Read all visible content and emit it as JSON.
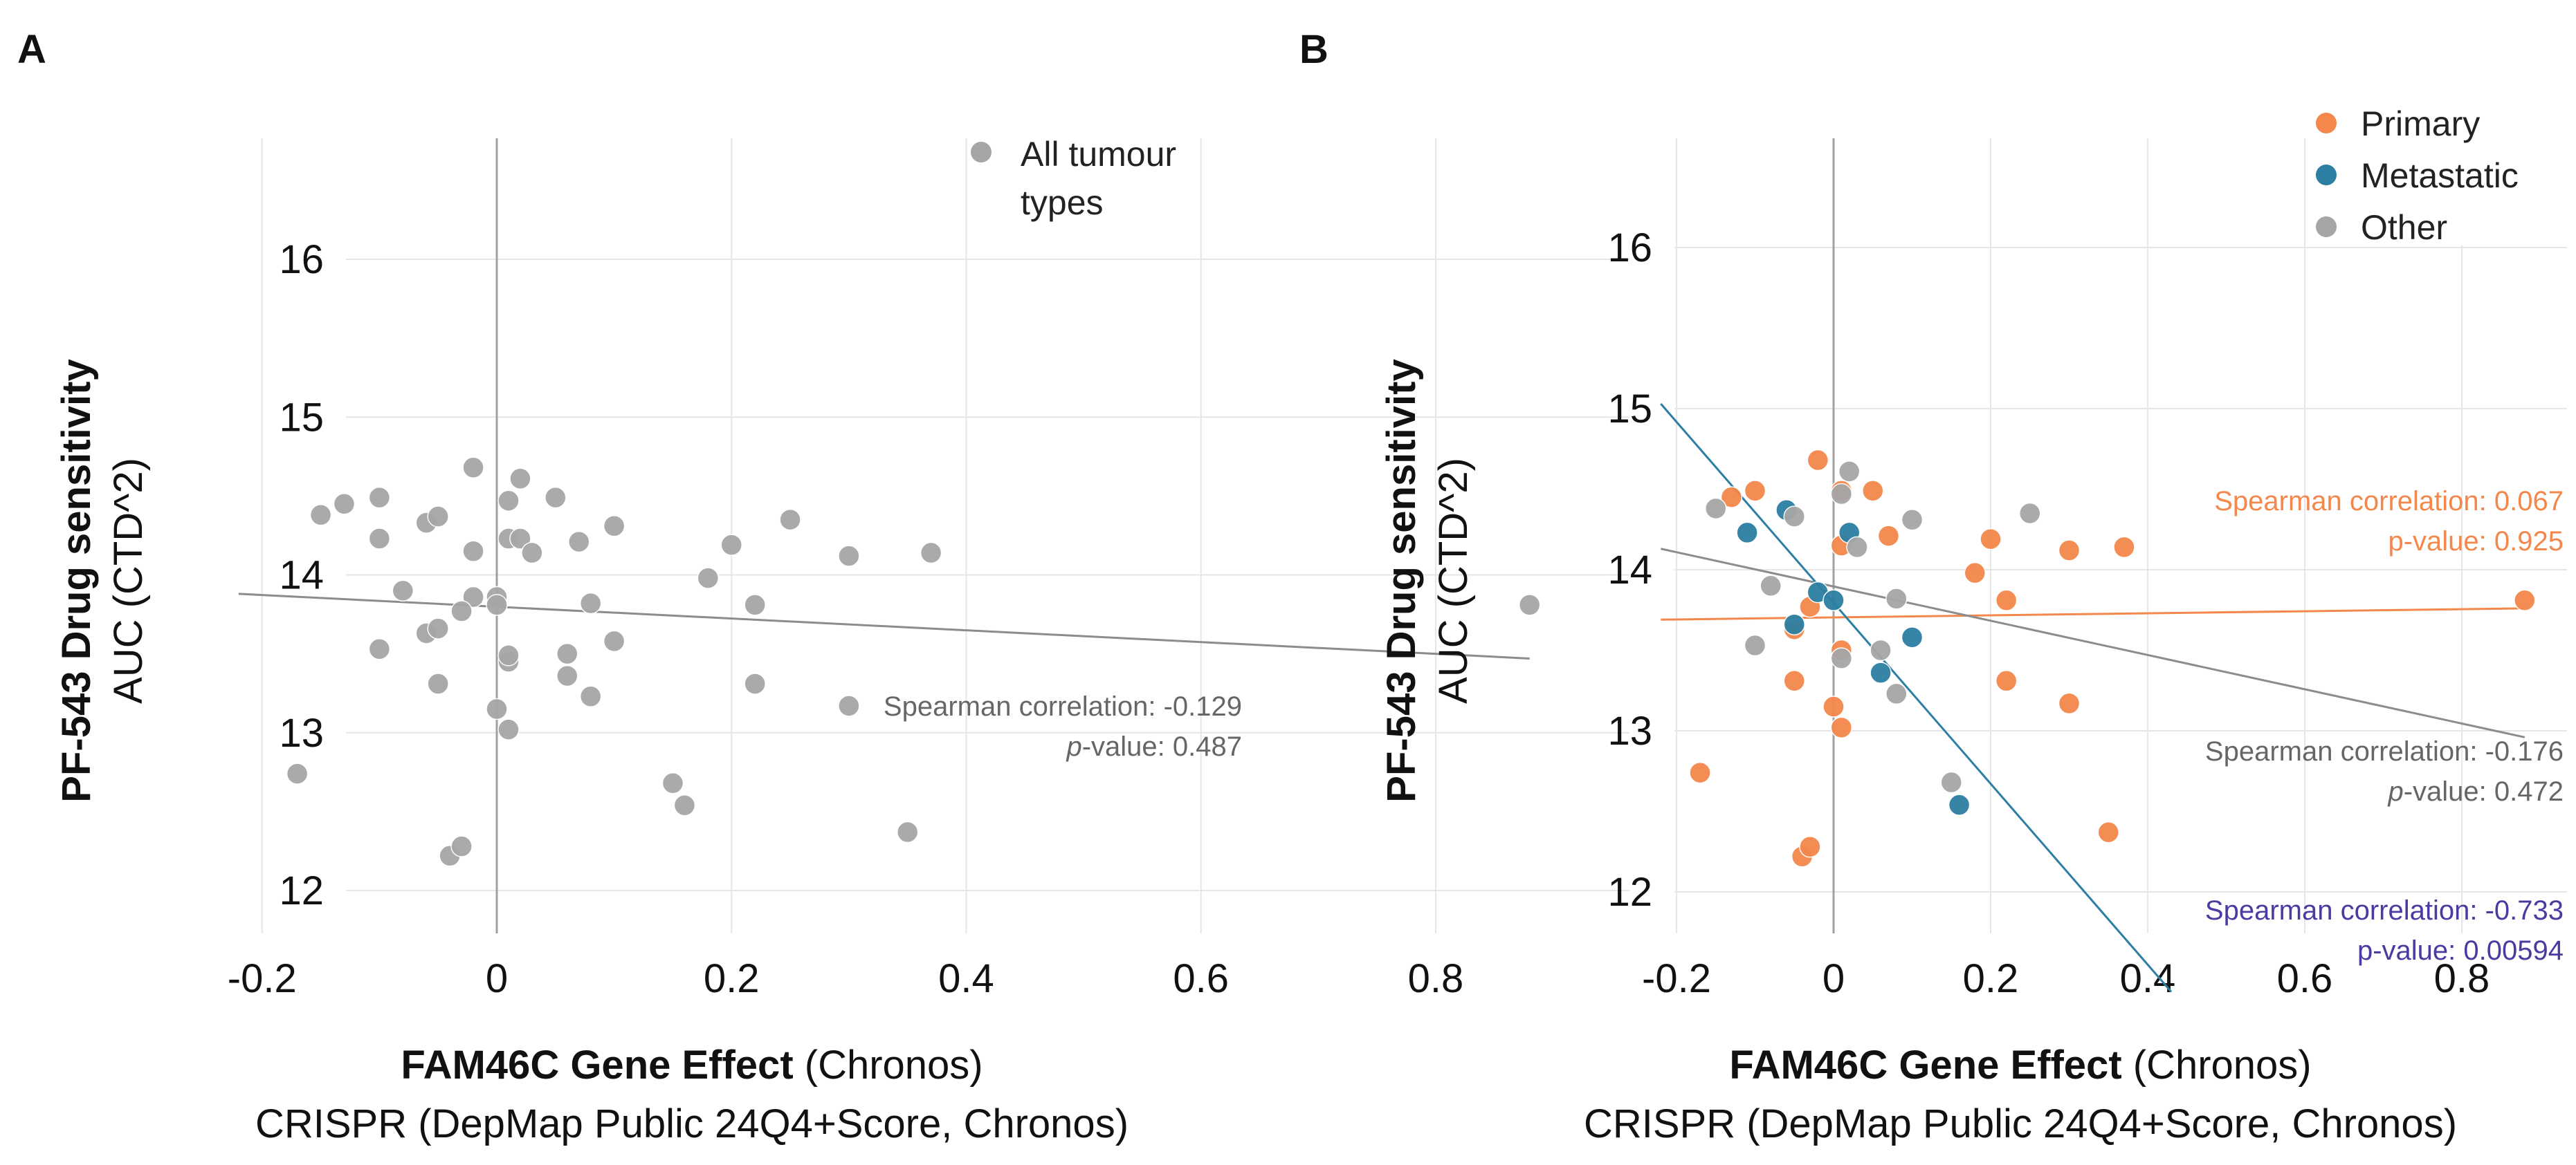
{
  "chart_data": [
    {
      "panel": "A",
      "type": "scatter",
      "xlabel_bold": "FAM46C Gene Effect",
      "xlabel_rest": " (Chronos)",
      "xlabel_line2": "CRISPR (DepMap  Public 24Q4+Score, Chronos)",
      "ylabel_bold": "PF-543 Drug sensitivity",
      "ylabel_line2": "AUC (CTD^2)",
      "xlim": [
        -0.3,
        1.0
      ],
      "ylim": [
        11.8,
        16.9
      ],
      "xticks": [
        -0.2,
        0,
        0.2,
        0.4,
        0.6,
        0.8
      ],
      "xtick_labels": [
        "-0.2",
        "0",
        "0.2",
        "0.4",
        "0.6",
        "0.8"
      ],
      "yticks": [
        12,
        13,
        14,
        15,
        16
      ],
      "ytick_labels": [
        "12",
        "13",
        "14",
        "15",
        "16"
      ],
      "legend": [
        {
          "label_line1": "All tumour",
          "label_line2": "types",
          "color": "#a6a6a6"
        }
      ],
      "series": [
        {
          "name": "All tumour types",
          "color": "#a6a6a6",
          "points": [
            [
              -0.17,
              12.74
            ],
            [
              -0.15,
              14.38
            ],
            [
              -0.13,
              14.45
            ],
            [
              -0.1,
              14.49
            ],
            [
              -0.1,
              14.23
            ],
            [
              -0.1,
              13.53
            ],
            [
              -0.08,
              13.9
            ],
            [
              -0.06,
              13.63
            ],
            [
              -0.05,
              13.66
            ],
            [
              -0.06,
              14.33
            ],
            [
              -0.05,
              14.37
            ],
            [
              -0.05,
              13.31
            ],
            [
              -0.04,
              12.22
            ],
            [
              -0.03,
              12.28
            ],
            [
              -0.02,
              14.68
            ],
            [
              -0.02,
              13.86
            ],
            [
              -0.02,
              14.15
            ],
            [
              0.0,
              13.86
            ],
            [
              0.0,
              13.81
            ],
            [
              -0.03,
              13.77
            ],
            [
              0.0,
              13.15
            ],
            [
              0.01,
              13.02
            ],
            [
              0.01,
              13.45
            ],
            [
              0.01,
              13.49
            ],
            [
              0.01,
              14.23
            ],
            [
              0.01,
              14.47
            ],
            [
              0.02,
              14.61
            ],
            [
              0.02,
              14.23
            ],
            [
              0.03,
              14.14
            ],
            [
              0.05,
              14.49
            ],
            [
              0.06,
              13.5
            ],
            [
              0.06,
              13.36
            ],
            [
              0.07,
              14.21
            ],
            [
              0.08,
              13.82
            ],
            [
              0.08,
              13.23
            ],
            [
              0.1,
              14.31
            ],
            [
              0.1,
              13.58
            ],
            [
              0.15,
              12.68
            ],
            [
              0.16,
              12.54
            ],
            [
              0.18,
              13.98
            ],
            [
              0.2,
              14.19
            ],
            [
              0.22,
              13.31
            ],
            [
              0.22,
              13.81
            ],
            [
              0.25,
              14.35
            ],
            [
              0.3,
              14.12
            ],
            [
              0.3,
              13.17
            ],
            [
              0.35,
              12.37
            ],
            [
              0.37,
              14.14
            ],
            [
              0.88,
              13.81
            ]
          ]
        }
      ],
      "fit_lines": [
        {
          "name": "all",
          "color": "#8c8c8c",
          "x": [
            -0.22,
            0.88
          ],
          "y": [
            13.88,
            13.47
          ]
        }
      ],
      "annotations": [
        {
          "line1": "Spearman correlation: -0.129",
          "line2_italic": "p",
          "line2_rest": "-value: 0.487",
          "color": "#666666"
        }
      ]
    },
    {
      "panel": "B",
      "type": "scatter",
      "xlabel_bold": "FAM46C Gene Effect",
      "xlabel_rest": " (Chronos)",
      "xlabel_line2": "CRISPR (DepMap  Public 24Q4+Score, Chronos)",
      "ylabel_bold": "PF-543 Drug sensitivity",
      "ylabel_line2": "AUC (CTD^2)",
      "xlim": [
        -0.3,
        1.0
      ],
      "ylim": [
        11.8,
        16.9
      ],
      "xticks": [
        -0.2,
        0,
        0.2,
        0.4,
        0.6,
        0.8
      ],
      "xtick_labels": [
        "-0.2",
        "0",
        "0.2",
        "0.4",
        "0.6",
        "0.8"
      ],
      "yticks": [
        12,
        13,
        14,
        15,
        16
      ],
      "ytick_labels": [
        "12",
        "13",
        "14",
        "15",
        "16"
      ],
      "legend": [
        {
          "label": "Primary",
          "color": "#f4874b"
        },
        {
          "label": "Metastatic",
          "color": "#2c7fa3"
        },
        {
          "label": "Other",
          "color": "#a6a6a6"
        }
      ],
      "series": [
        {
          "name": "Primary",
          "color": "#f4874b",
          "points": [
            [
              -0.17,
              12.74
            ],
            [
              -0.13,
              14.45
            ],
            [
              -0.1,
              14.49
            ],
            [
              -0.05,
              13.63
            ],
            [
              -0.05,
              13.31
            ],
            [
              -0.04,
              12.22
            ],
            [
              -0.03,
              12.28
            ],
            [
              -0.02,
              14.68
            ],
            [
              -0.03,
              13.77
            ],
            [
              0.0,
              13.15
            ],
            [
              0.01,
              13.02
            ],
            [
              0.01,
              13.5
            ],
            [
              0.01,
              14.49
            ],
            [
              0.01,
              14.15
            ],
            [
              0.05,
              14.49
            ],
            [
              0.07,
              14.21
            ],
            [
              0.18,
              13.98
            ],
            [
              0.2,
              14.19
            ],
            [
              0.22,
              13.31
            ],
            [
              0.22,
              13.81
            ],
            [
              0.3,
              14.12
            ],
            [
              0.3,
              13.17
            ],
            [
              0.35,
              12.37
            ],
            [
              0.37,
              14.14
            ],
            [
              0.88,
              13.81
            ]
          ]
        },
        {
          "name": "Metastatic",
          "color": "#2c7fa3",
          "points": [
            [
              -0.11,
              14.23
            ],
            [
              -0.06,
              14.37
            ],
            [
              -0.05,
              13.66
            ],
            [
              -0.02,
              13.86
            ],
            [
              0.0,
              13.81
            ],
            [
              0.02,
              14.23
            ],
            [
              0.06,
              13.36
            ],
            [
              0.1,
              13.58
            ],
            [
              0.16,
              12.54
            ]
          ]
        },
        {
          "name": "Other",
          "color": "#a6a6a6",
          "points": [
            [
              -0.15,
              14.38
            ],
            [
              -0.1,
              13.53
            ],
            [
              -0.08,
              13.9
            ],
            [
              -0.05,
              14.33
            ],
            [
              0.01,
              13.45
            ],
            [
              0.02,
              14.61
            ],
            [
              0.01,
              14.47
            ],
            [
              0.03,
              14.14
            ],
            [
              0.06,
              13.5
            ],
            [
              0.08,
              13.82
            ],
            [
              0.08,
              13.23
            ],
            [
              0.1,
              14.31
            ],
            [
              0.15,
              12.68
            ],
            [
              0.25,
              14.35
            ]
          ]
        }
      ],
      "fit_lines": [
        {
          "name": "Primary",
          "color": "#f4874b",
          "x": [
            -0.22,
            0.88
          ],
          "y": [
            13.69,
            13.76
          ]
        },
        {
          "name": "Other",
          "color": "#8c8c8c",
          "x": [
            -0.22,
            0.88
          ],
          "y": [
            14.13,
            12.96
          ]
        },
        {
          "name": "Metastatic",
          "color": "#2c7fa3",
          "x": [
            -0.22,
            0.43
          ],
          "y": [
            15.03,
            11.38
          ]
        }
      ],
      "annotations": [
        {
          "line1": "Spearman correlation: 0.067",
          "line2_italic": "",
          "line2_rest": "p-value: 0.925",
          "color": "#f4874b"
        },
        {
          "line1": "Spearman correlation: -0.176",
          "line2_italic": "p",
          "line2_rest": "-value: 0.472",
          "color": "#666666"
        },
        {
          "line1": "Spearman correlation: -0.733",
          "line2_italic": "",
          "line2_rest": "p-value: 0.00594",
          "color": "#4b3aa0"
        }
      ]
    }
  ]
}
